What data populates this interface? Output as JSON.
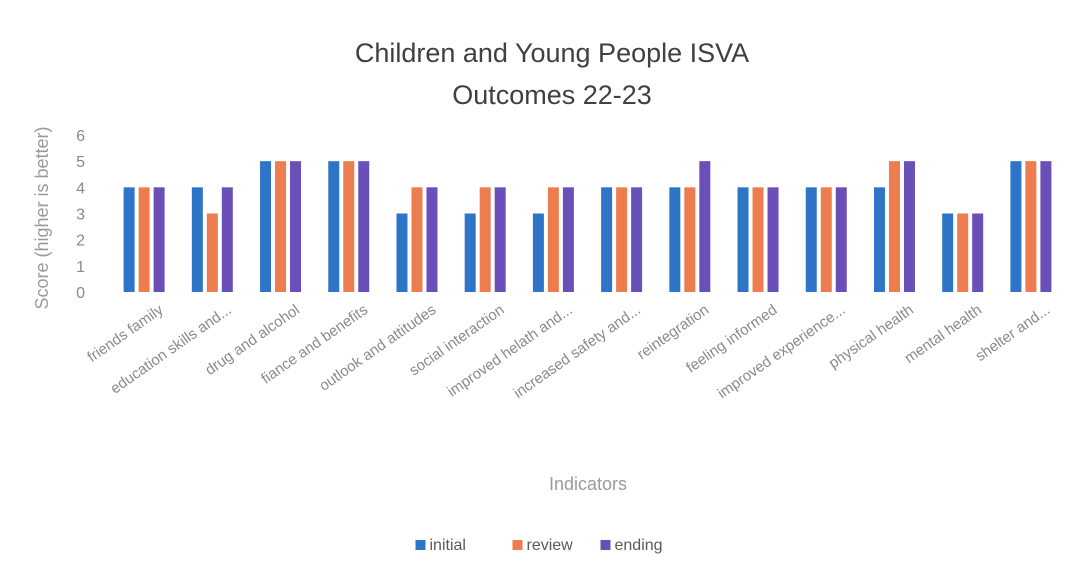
{
  "chart_data": {
    "type": "bar",
    "title_line1": "Children and Young People ISVA",
    "title_line2": "Outcomes 22-23",
    "xlabel": "Indicators",
    "ylabel": "Score (higher is better)",
    "ylim": [
      0,
      6
    ],
    "yticks": [
      "0",
      "1",
      "2",
      "3",
      "4",
      "5",
      "6"
    ],
    "grid": false,
    "legend_position": "bottom",
    "categories": [
      "friends family",
      "education skills and...",
      "drug and alcohol",
      "fiance and benefits",
      "outlook and attitudes",
      "social interaction",
      "improved helath and...",
      "increased safety and...",
      "reintegration",
      "feeling informed",
      "improved experience...",
      "physical health",
      "mental health",
      "shelter and..."
    ],
    "series": [
      {
        "name": "initial",
        "color": "#2e75c7",
        "values": [
          4,
          4,
          5,
          5,
          3,
          3,
          3,
          4,
          4,
          4,
          4,
          4,
          3,
          5
        ]
      },
      {
        "name": "review",
        "color": "#ed7d4f",
        "values": [
          4,
          3,
          5,
          5,
          4,
          4,
          4,
          4,
          4,
          4,
          4,
          5,
          3,
          5
        ]
      },
      {
        "name": "ending",
        "color": "#6b4fb8",
        "values": [
          4,
          4,
          5,
          5,
          4,
          4,
          4,
          4,
          5,
          4,
          4,
          5,
          3,
          5
        ]
      }
    ]
  }
}
